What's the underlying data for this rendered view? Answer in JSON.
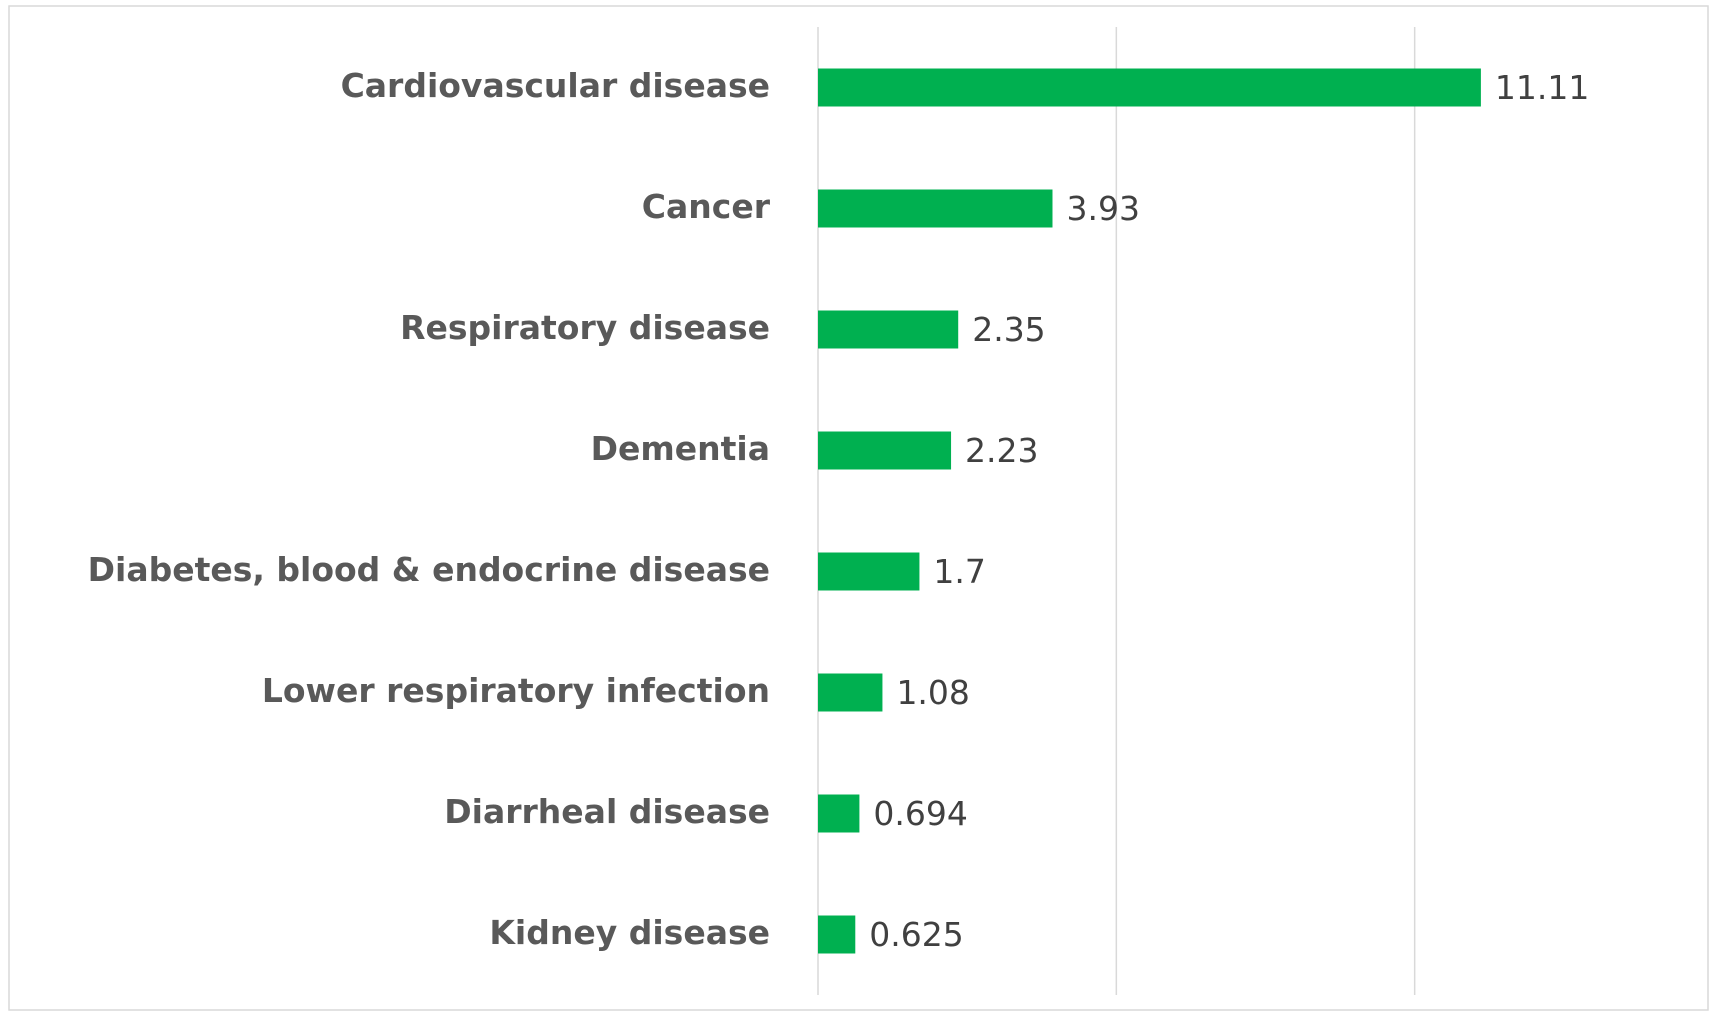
{
  "chart_data": {
    "type": "bar",
    "orientation": "horizontal",
    "categories": [
      "Cardiovascular disease",
      "Cancer",
      "Respiratory disease",
      "Dementia",
      "Diabetes, blood & endocrine disease",
      "Lower respiratory infection",
      "Diarrheal disease",
      "Kidney disease"
    ],
    "values": [
      11.11,
      3.93,
      2.35,
      2.23,
      1.7,
      1.08,
      0.694,
      0.625
    ],
    "color": "#00b050",
    "xlim": [
      0,
      15
    ],
    "xticks": [
      0,
      5,
      10
    ],
    "grid": true
  }
}
